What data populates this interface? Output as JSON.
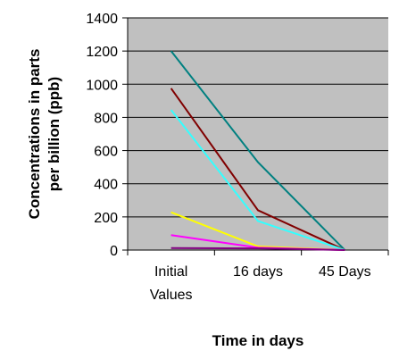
{
  "chart_data": {
    "type": "line",
    "title": "",
    "xlabel": "Time in days",
    "ylabel": "Concentrations in parts per billion (ppb)",
    "ylabel_lines": [
      "Concentrations in parts",
      "per billion (ppb)"
    ],
    "categories": [
      "Initial Values",
      "16 days",
      "45 Days"
    ],
    "category_lines": [
      [
        "Initial",
        "Values"
      ],
      [
        "16 days"
      ],
      [
        "45 Days"
      ]
    ],
    "ylim": [
      0,
      1400
    ],
    "yticks": [
      0,
      200,
      400,
      600,
      800,
      1000,
      1200,
      1400
    ],
    "grid": true,
    "legend": "none",
    "plot_background": "#c0c0c0",
    "series": [
      {
        "color": "#008080",
        "values": [
          1200,
          530,
          0
        ]
      },
      {
        "color": "#800000",
        "values": [
          975,
          240,
          0
        ]
      },
      {
        "color": "#33ffff",
        "values": [
          845,
          175,
          0
        ]
      },
      {
        "color": "#ffff00",
        "values": [
          228,
          22,
          0
        ]
      },
      {
        "color": "#ff00ff",
        "values": [
          90,
          15,
          0
        ]
      },
      {
        "color": "#800080",
        "values": [
          12,
          10,
          0
        ]
      }
    ]
  }
}
